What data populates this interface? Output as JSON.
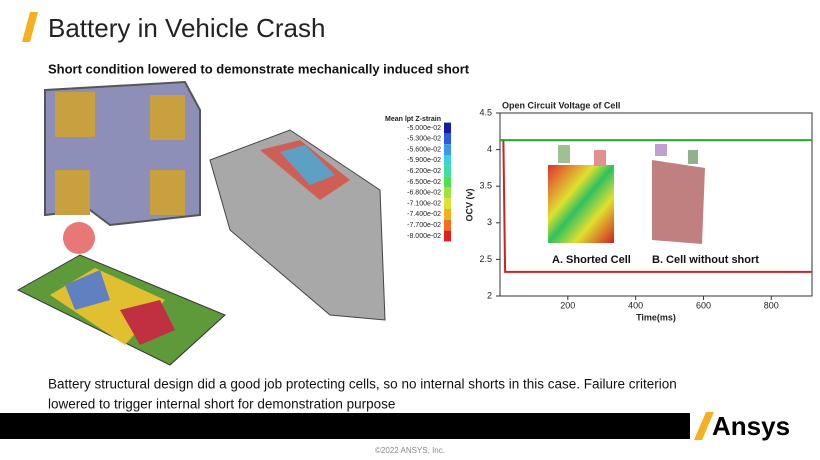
{
  "header": {
    "title": "Battery in Vehicle Crash",
    "subtitle": "Short condition lowered to demonstrate mechanically induced short"
  },
  "colorbar": {
    "title": "Mean  lpt Z-strain",
    "labels": [
      "-5.000e-02",
      "-5.300e-02",
      "-5.600e-02",
      "-5.900e-02",
      "-6.200e-02",
      "-6.500e-02",
      "-6.800e-02",
      "-7.100e-02",
      "-7.400e-02",
      "-7.700e-02",
      "-8.000e-02"
    ],
    "colors": [
      "#1a1aa8",
      "#2d5cd8",
      "#3a9ae8",
      "#3cd0e0",
      "#3ce0a0",
      "#50e050",
      "#a0e040",
      "#e0e030",
      "#f0b020",
      "#f07020",
      "#e02020"
    ]
  },
  "chart_data": {
    "type": "line",
    "title": "Open Circuit Voltage of Cell",
    "x_label": "Time(ms)",
    "y_label": "OCV (v)",
    "x": [
      0,
      10,
      15,
      920
    ],
    "series": [
      {
        "name": "A. Shorted Cell",
        "color": "#d02020",
        "values": [
          4.13,
          4.13,
          2.33,
          2.33
        ]
      },
      {
        "name": "B. Cell without short",
        "color": "#20b020",
        "values": [
          4.13,
          4.13,
          4.13,
          4.13
        ]
      }
    ],
    "xlim": [
      0,
      920
    ],
    "ylim": [
      2,
      4.5
    ],
    "xticks": [
      200,
      400,
      600,
      800
    ],
    "yticks": [
      2,
      2.5,
      3,
      3.5,
      4,
      4.5
    ]
  },
  "body": {
    "lines": [
      "Battery structural design did a good job protecting cells, so no internal shorts in this case.  Failure criterion",
      "lowered  to trigger internal short for demonstration purpose"
    ]
  },
  "footer": {
    "copyright": "©2022 ANSYS, Inc.",
    "logo": "Ansys"
  }
}
